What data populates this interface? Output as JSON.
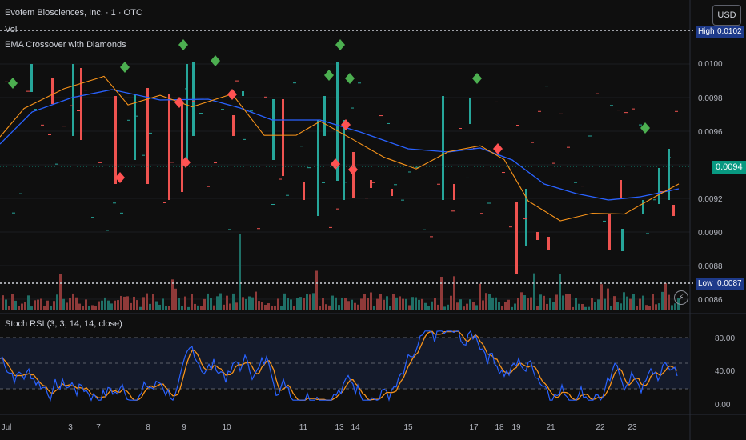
{
  "header": {
    "symbol_title": "Evofem Biosciences, Inc. · 1 · OTC",
    "vol_label": "Vol",
    "indicator_label": "EMA Crossover with Diamonds",
    "stoch_label": "Stoch RSI (3, 3, 14, 14, close)",
    "currency_button": "USD"
  },
  "price_axis": {
    "ticks": [
      "0.0100",
      "0.0098",
      "0.0096",
      "0.0092",
      "0.0090",
      "0.0088",
      "0.0086"
    ],
    "high_label": "High",
    "high_value": "0.0102",
    "low_label": "Low",
    "low_value": "0.0087",
    "last_price": "0.0094"
  },
  "rsi_axis": {
    "ticks": [
      "80.00",
      "40.00",
      "0.00"
    ]
  },
  "time_axis": {
    "labels": [
      "Jul",
      "3",
      "7",
      "8",
      "9",
      "10",
      "11",
      "13",
      "14",
      "15",
      "17",
      "18",
      "19",
      "21",
      "22",
      "23"
    ]
  },
  "colors": {
    "up": "#26a69a",
    "down": "#ef5350",
    "ema_fast": "#f7931a",
    "ema_slow": "#2962ff",
    "diamond_up": "#4caf50",
    "diamond_down": "#ff5252",
    "last_price_bg": "#089981",
    "extreme_badge": "#1e3a8a"
  },
  "icons": {
    "replay": "lightning-icon"
  }
}
